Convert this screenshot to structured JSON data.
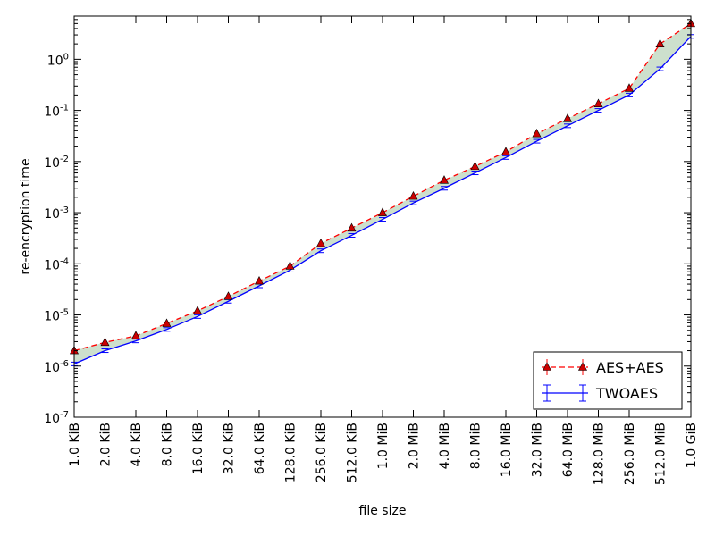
{
  "chart_data": {
    "type": "line",
    "title": "",
    "xlabel": "file size",
    "ylabel": "re-encryption time",
    "yscale": "log",
    "ylim": [
      1e-07,
      7
    ],
    "y_tick_values": [
      1e-07,
      1e-06,
      1e-05,
      0.0001,
      0.001,
      0.01,
      0.1,
      1
    ],
    "y_tick_bases": [
      "10",
      "10",
      "10",
      "10",
      "10",
      "10",
      "10",
      "10"
    ],
    "y_tick_exponents": [
      "-7",
      "-6",
      "-5",
      "-4",
      "-3",
      "-2",
      "-1",
      "0"
    ],
    "categories": [
      "1.0 KiB",
      "2.0 KiB",
      "4.0 KiB",
      "8.0 KiB",
      "16.0 KiB",
      "32.0 KiB",
      "64.0 KiB",
      "128.0 KiB",
      "256.0 KiB",
      "512.0 KiB",
      "1.0 MiB",
      "2.0 MiB",
      "4.0 MiB",
      "8.0 MiB",
      "16.0 MiB",
      "32.0 MiB",
      "64.0 MiB",
      "128.0 MiB",
      "256.0 MiB",
      "512.0 MiB",
      "1.0 GiB"
    ],
    "series": [
      {
        "name": "AES+AES",
        "style": "dashed-triangle",
        "color": "#ff0000",
        "marker_color": "#cc0000",
        "values": [
          2e-06,
          2.9e-06,
          3.9e-06,
          6.8e-06,
          1.2e-05,
          2.3e-05,
          4.6e-05,
          9e-05,
          0.00025,
          0.0005,
          0.001,
          0.0021,
          0.0043,
          0.008,
          0.0155,
          0.035,
          0.069,
          0.135,
          0.27,
          2.0,
          5.0
        ]
      },
      {
        "name": "TWOAES",
        "style": "solid",
        "color": "#0000ff",
        "values": [
          1.1e-06,
          2e-06,
          3.1e-06,
          5.2e-06,
          9.3e-06,
          1.85e-05,
          3.7e-05,
          7.5e-05,
          0.00018,
          0.00036,
          0.00074,
          0.00155,
          0.003,
          0.006,
          0.012,
          0.025,
          0.05,
          0.1,
          0.2,
          0.65,
          2.8
        ]
      }
    ],
    "fill_between": {
      "color": "#cde0cd"
    },
    "grid": false,
    "legend_position": "bottom-right"
  }
}
